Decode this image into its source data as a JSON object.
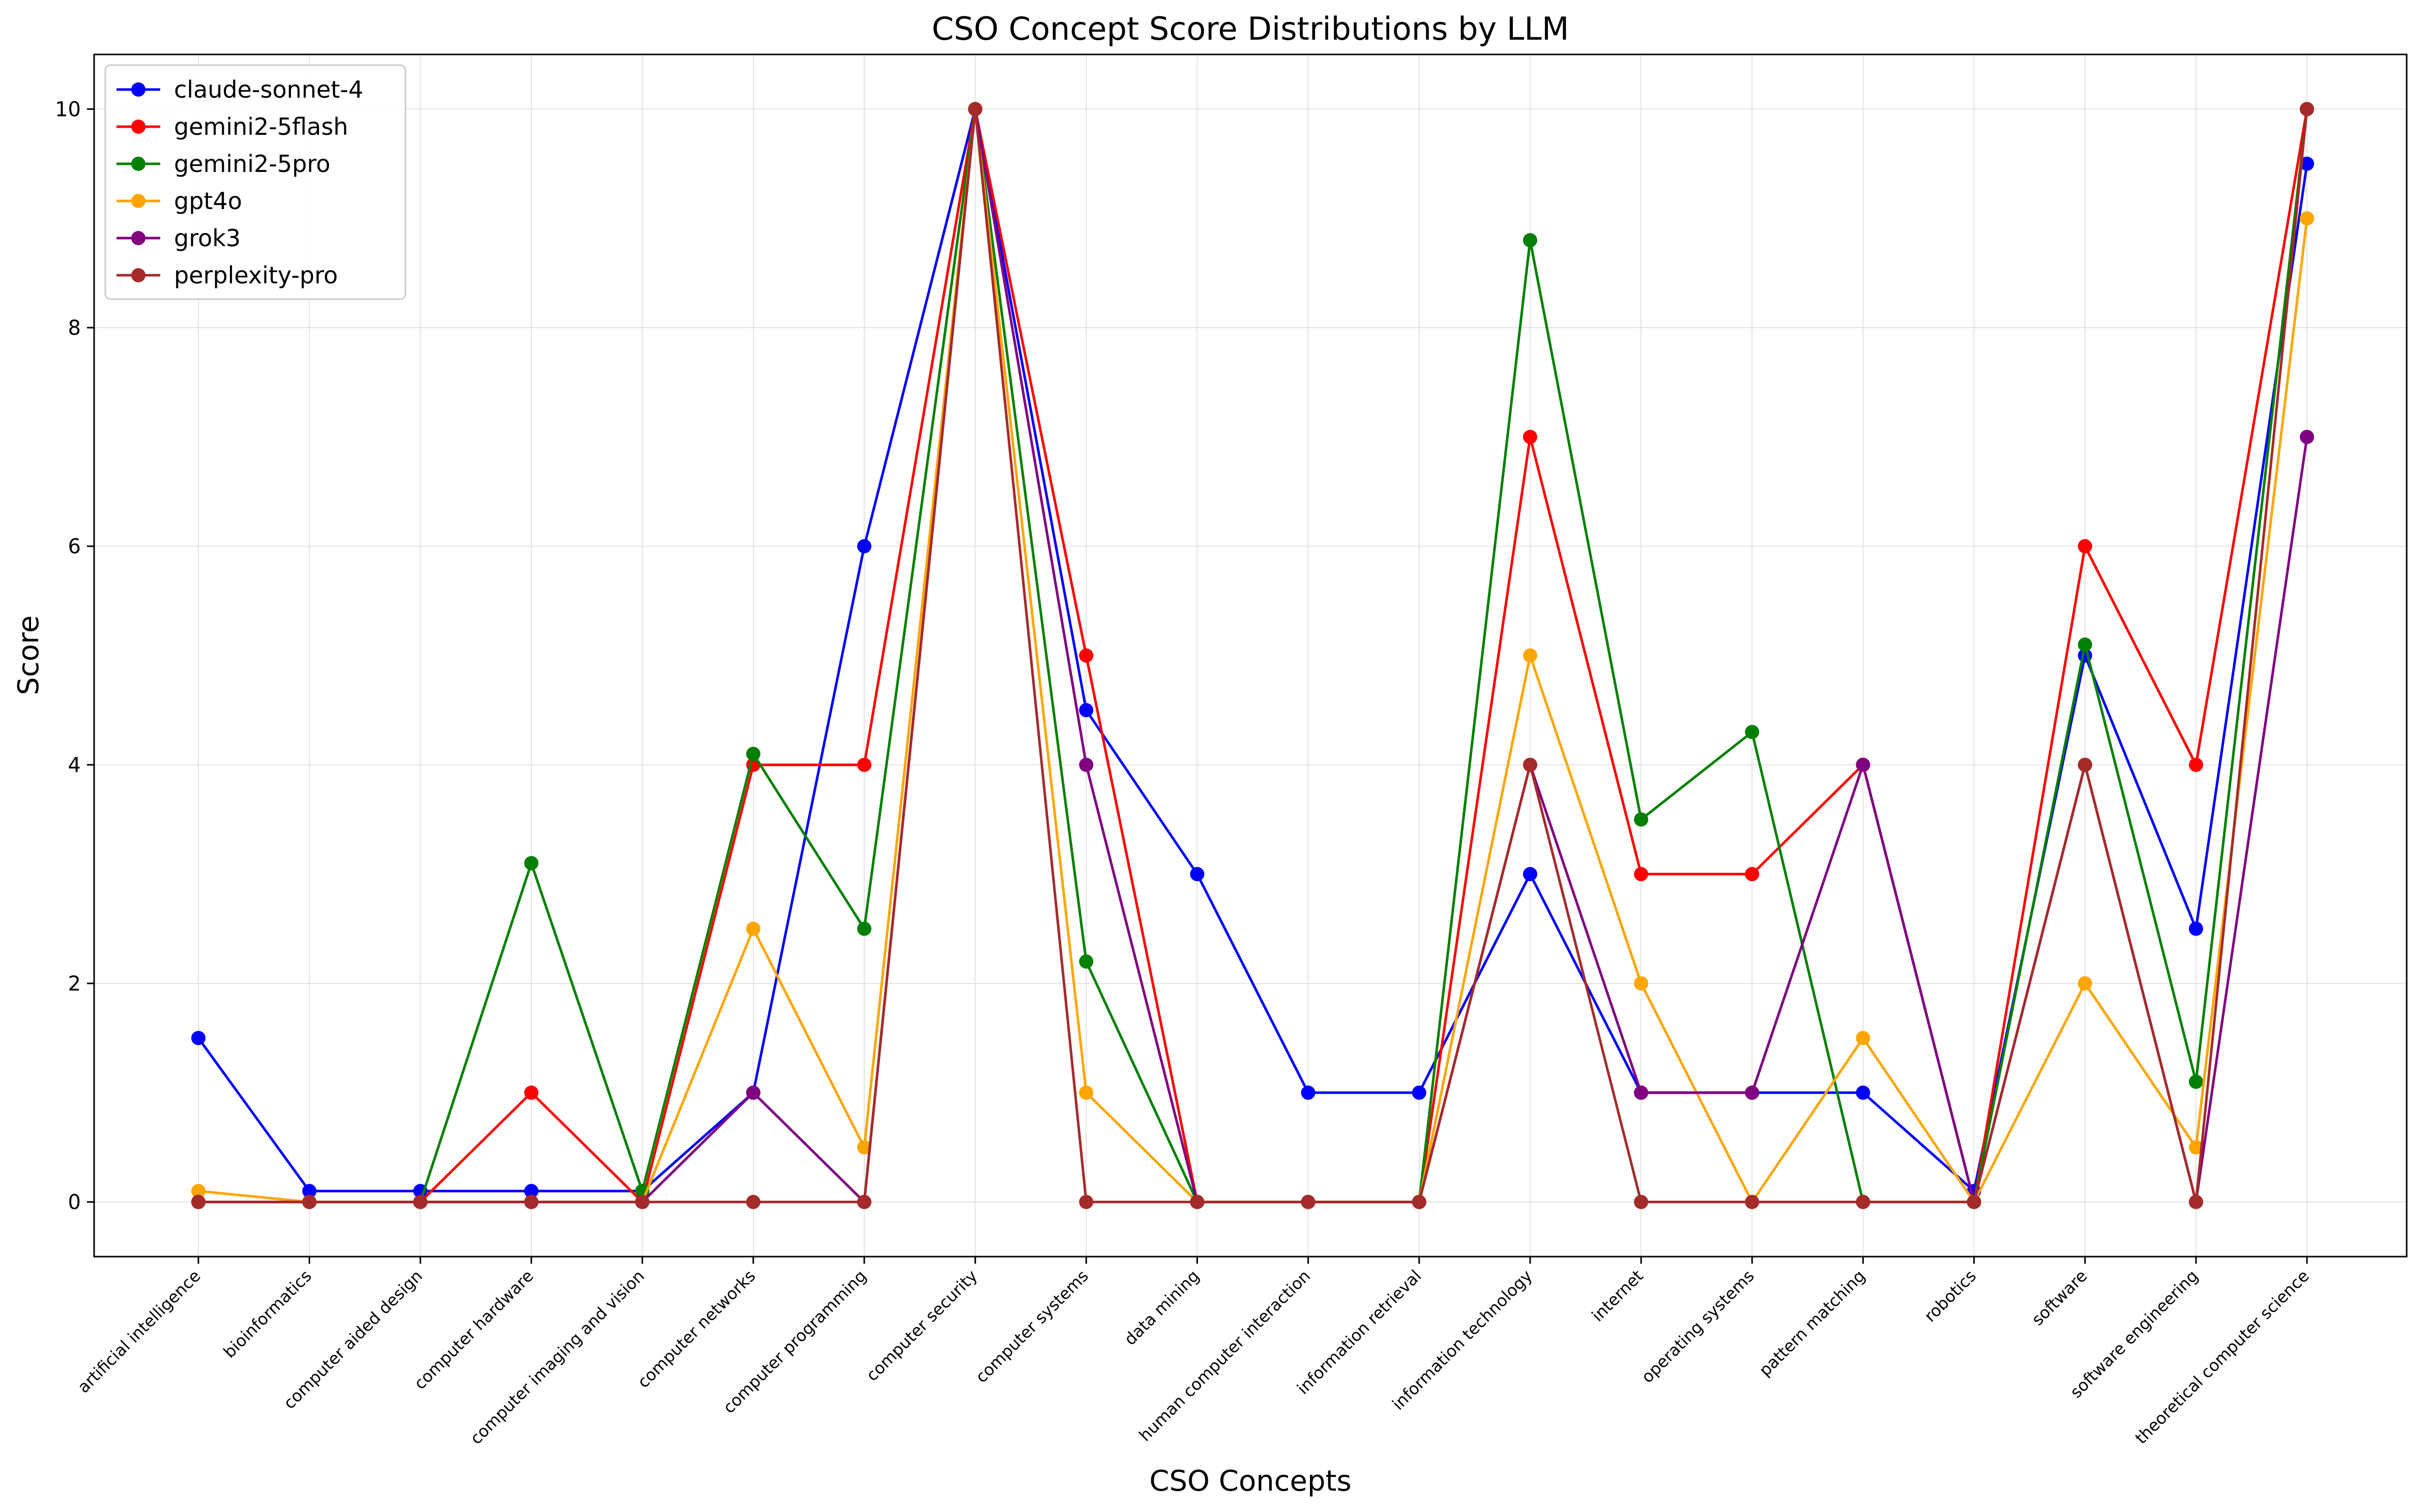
{
  "chart_data": {
    "type": "line",
    "title": "CSO Concept Score Distributions by LLM",
    "xlabel": "CSO Concepts",
    "ylabel": "Score",
    "ylim": [
      -0.5,
      10.5
    ],
    "yticks": [
      0,
      2,
      4,
      6,
      8,
      10
    ],
    "grid": true,
    "legend_position": "top-left",
    "categories": [
      "artificial intelligence",
      "bioinformatics",
      "computer aided design",
      "computer hardware",
      "computer imaging and vision",
      "computer networks",
      "computer programming",
      "computer security",
      "computer systems",
      "data mining",
      "human computer interaction",
      "information retrieval",
      "information technology",
      "internet",
      "operating systems",
      "pattern matching",
      "robotics",
      "software",
      "software engineering",
      "theoretical computer science"
    ],
    "series": [
      {
        "name": "claude-sonnet-4",
        "color": "#0000ff",
        "values": [
          1.5,
          0.1,
          0.1,
          0.1,
          0.1,
          1,
          6,
          10,
          4.5,
          3,
          1,
          1,
          3,
          1,
          1,
          1,
          0.1,
          5,
          2.5,
          9.5
        ]
      },
      {
        "name": "gemini2-5flash",
        "color": "#ff0000",
        "values": [
          0,
          0,
          0,
          1,
          0,
          4,
          4,
          10,
          5,
          0,
          0,
          0,
          7,
          3,
          3,
          4,
          0,
          6,
          4,
          10
        ]
      },
      {
        "name": "gemini2-5pro",
        "color": "#008000",
        "values": [
          0,
          0,
          0,
          3.1,
          0.1,
          4.1,
          2.5,
          10,
          2.2,
          0,
          0,
          0,
          8.8,
          3.5,
          4.3,
          0,
          0,
          5.1,
          1.1,
          10
        ]
      },
      {
        "name": "gpt4o",
        "color": "#ffa500",
        "values": [
          0.1,
          0,
          0,
          0,
          0,
          2.5,
          0.5,
          10,
          1,
          0,
          0,
          0,
          5,
          2,
          0,
          1.5,
          0,
          2,
          0.5,
          9
        ]
      },
      {
        "name": "grok3",
        "color": "#800080",
        "values": [
          0,
          0,
          0,
          0,
          0,
          1,
          0,
          10,
          4,
          0,
          0,
          0,
          4,
          1,
          1,
          4,
          0,
          4,
          0,
          7
        ]
      },
      {
        "name": "perplexity-pro",
        "color": "#a52a2a",
        "values": [
          0,
          0,
          0,
          0,
          0,
          0,
          0,
          10,
          0,
          0,
          0,
          0,
          4,
          0,
          0,
          0,
          0,
          4,
          0,
          10
        ]
      }
    ]
  }
}
